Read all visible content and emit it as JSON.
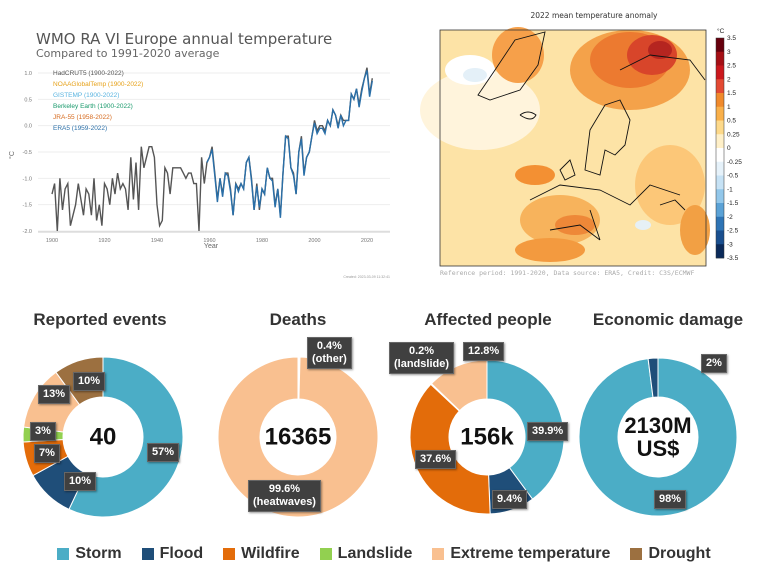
{
  "chart_data": [
    {
      "type": "line",
      "title": "WMO RA VI Europe annual temperature",
      "subtitle": "Compared to 1991-2020 average",
      "xlabel": "Year",
      "ylabel": "°C",
      "xlim": [
        1897,
        2025
      ],
      "ylim": [
        -2.4,
        1.25
      ],
      "xticks": [
        1900,
        1920,
        1940,
        1960,
        1980,
        2000,
        2020
      ],
      "yticks": [
        1.0,
        0.5,
        0.0,
        -0.5,
        -1.0,
        -1.5,
        -2.0
      ],
      "ytick_labels": [
        "1.0",
        "0.5",
        "0.0",
        "-0.5",
        "-1.0",
        "-1.5",
        "-2.0"
      ],
      "grid": true,
      "legend_placement": "top-left",
      "legend": [
        {
          "name": "HadCRUT5 (1900-2022)",
          "color": "#555555"
        },
        {
          "name": "NOAAGlobalTemp (1900-2022)",
          "color": "#e6a118"
        },
        {
          "name": "GISTEMP (1900-2022)",
          "color": "#5ab4e0"
        },
        {
          "name": "Berkeley Earth (1900-2022)",
          "color": "#1a9a6c"
        },
        {
          "name": "JRA-55 (1958-2022)",
          "color": "#d66a1e"
        },
        {
          "name": "ERA5 (1959-2022)",
          "color": "#2a6fa8"
        }
      ],
      "series": [
        {
          "name": "HadCRUT5 (1900-2022)",
          "start": 1900,
          "color": "#555555",
          "values": [
            -1.3,
            -1.1,
            -2.0,
            -1.0,
            -1.6,
            -1.2,
            -1.1,
            -1.9,
            -1.7,
            -1.5,
            -1.1,
            -1.4,
            -1.7,
            -1.2,
            -1.3,
            -1.7,
            -1.0,
            -1.8,
            -1.5,
            -1.9,
            -1.1,
            -1.2,
            -1.5,
            -1.0,
            -1.3,
            -0.9,
            -1.2,
            -1.1,
            -1.2,
            -1.6,
            -0.6,
            -1.4,
            -0.7,
            -1.6,
            -0.4,
            -0.8,
            -0.6,
            -0.4,
            -0.4,
            -0.6,
            -1.5,
            -1.9,
            -1.8,
            -0.8,
            -0.9,
            -1.3,
            -0.8,
            -0.8,
            -0.8,
            -0.8,
            -0.9,
            -1.0,
            -0.9,
            -0.9,
            -1.1,
            -1.1,
            -2.0,
            -0.6,
            -1.1,
            -0.7,
            -0.6,
            -0.4,
            -0.9,
            -1.4,
            -1.0,
            -1.3,
            -0.9,
            -0.9,
            -1.2,
            -1.7,
            -1.1,
            -1.2,
            -1.1,
            -1.2,
            -0.7,
            -0.6,
            -1.0,
            -1.6,
            -1.1,
            -1.6,
            -1.2,
            -1.3,
            -0.8,
            -1.0,
            -1.0,
            -1.5,
            -1.2,
            -1.7,
            -0.9,
            -0.2,
            -0.2,
            -0.8,
            -0.9,
            -1.3,
            -0.5,
            -0.2,
            -0.9,
            -0.6,
            -0.5,
            -0.2,
            0.1,
            -0.1,
            0.0,
            0.0,
            -0.1,
            0.1,
            0.0,
            0.3,
            0.2,
            0.0,
            0.2,
            0.1,
            0.1,
            0.1,
            0.6,
            0.5,
            0.7,
            0.4,
            0.7,
            0.9,
            1.1,
            0.6,
            0.9
          ]
        },
        {
          "name": "ERA5 (1959-2022)",
          "start": 1959,
          "color": "#2a6fa8",
          "values": [
            -0.7,
            -0.6,
            -0.45,
            -0.95,
            -1.45,
            -1.0,
            -1.35,
            -0.9,
            -0.95,
            -1.25,
            -1.7,
            -1.1,
            -1.25,
            -1.1,
            -1.2,
            -0.7,
            -0.6,
            -1.05,
            -1.6,
            -1.15,
            -1.55,
            -1.2,
            -1.3,
            -0.8,
            -1.0,
            -1.05,
            -1.55,
            -1.2,
            -1.75,
            -0.9,
            -0.2,
            -0.25,
            -0.8,
            -0.95,
            -1.3,
            -0.5,
            -0.25,
            -0.95,
            -0.6,
            -0.5,
            -0.2,
            0.05,
            -0.15,
            -0.05,
            -0.05,
            -0.15,
            0.1,
            0.0,
            0.3,
            0.2,
            -0.05,
            0.2,
            0.0,
            0.1,
            0.1,
            0.6,
            0.5,
            0.7,
            0.35,
            0.65,
            0.9,
            1.05,
            0.55,
            0.85
          ]
        }
      ],
      "footnote": "Created: 2023-03-09 11:32:41"
    },
    {
      "type": "heatmap",
      "title": "2022 mean temperature anomaly",
      "colorbar_unit": "°C",
      "colorbar_ticks": [
        "3.5",
        "3",
        "2.5",
        "2",
        "1.5",
        "1",
        "0.5",
        "0.25",
        "0",
        "-0.25",
        "-0.5",
        "-1",
        "-1.5",
        "-2",
        "-2.5",
        "-3",
        "-3.5"
      ],
      "colorbar_colors": [
        "#67000d",
        "#a50f15",
        "#cb181d",
        "#e34a33",
        "#f08a2c",
        "#f9b04a",
        "#fdd98a",
        "#fff0c8",
        "#ffffff",
        "#e6f2fa",
        "#c6e2f5",
        "#92c7ea",
        "#5ba2d6",
        "#2e74b5",
        "#1a4f8f",
        "#0b2a5a"
      ],
      "caption": "Reference period: 1991-2020, Data source: ERA5, Credit: C3S/ECMWF"
    },
    {
      "type": "pie",
      "title": "Reported events",
      "center_label": "40",
      "categories": [
        "Storm",
        "Flood",
        "Wildfire",
        "Landslide",
        "Extreme temperature",
        "Drought"
      ],
      "values": [
        57,
        10,
        7,
        3,
        13,
        10
      ],
      "labels": [
        "57%",
        "10%",
        "7%",
        "3%",
        "13%",
        "10%"
      ]
    },
    {
      "type": "pie",
      "title": "Deaths",
      "center_label": "16365",
      "categories": [
        "Other",
        "Extreme temperature"
      ],
      "values": [
        0.4,
        99.6
      ],
      "labels": [
        "0.4%\n(other)",
        "99.6%\n(heatwaves)"
      ]
    },
    {
      "type": "pie",
      "title": "Affected people",
      "center_label": "156k",
      "categories": [
        "Storm",
        "Flood",
        "Wildfire",
        "Landslide",
        "Extreme temperature"
      ],
      "values": [
        39.9,
        9.4,
        37.6,
        0.2,
        12.8
      ],
      "labels": [
        "39.9%",
        "9.4%",
        "37.6%",
        "0.2%\n(landslide)",
        "12.8%"
      ]
    },
    {
      "type": "pie",
      "title": "Economic damage",
      "center_label": "2130M\nUS$",
      "categories": [
        "Storm",
        "Flood"
      ],
      "values": [
        98,
        2
      ],
      "labels": [
        "98%",
        "2%"
      ]
    }
  ],
  "legend": [
    {
      "name": "Storm",
      "color": "#4badc6"
    },
    {
      "name": "Flood",
      "color": "#1f4e79"
    },
    {
      "name": "Wildfire",
      "color": "#e36c0a"
    },
    {
      "name": "Landslide",
      "color": "#92d050"
    },
    {
      "name": "Extreme temperature",
      "color": "#f9c090"
    },
    {
      "name": "Drought",
      "color": "#9c7040"
    }
  ]
}
